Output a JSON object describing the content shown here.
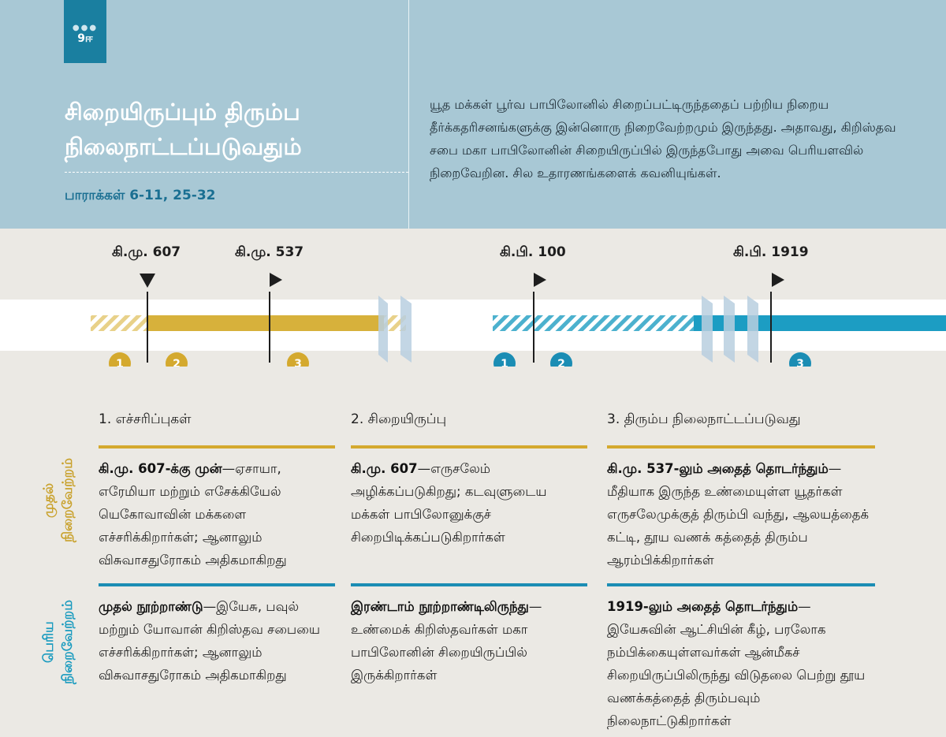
{
  "header": {
    "badge": "9ஈ",
    "title": [
      "சிறையிருப்பும் திரும்ப",
      "நிலைநாட்டப்படுவதும்"
    ],
    "paragraphs": "பாராக்கள் 6-11, 25-32",
    "intro": "யூத மக்கள் பூர்வ பாபிலோனில் சிறைப்பட்டிருந்ததைப் பற்றிய நிறைய தீர்க்கதரிசனங்களுக்கு இன்னொரு நிறைவேற்றமும் இருந்தது. அதாவது, கிறிஸ்தவ சபை மகா பாபிலோனின் சிறையிருப்பில் இருந்தபோது அவை பெரியளவில் நிறைவேறின. சில உதாரணங்களைக் கவனியுங்கள்."
  },
  "timeline": {
    "dates": [
      "கி.மு. 607",
      "கி.மு. 537",
      "கி.பி. 100",
      "கி.பி. 1919"
    ],
    "first_markers": [
      "1",
      "2",
      "3"
    ],
    "second_markers": [
      "1",
      "2",
      "3"
    ]
  },
  "table": {
    "columns": [
      "1. எச்சரிப்புகள்",
      "2. சிறையிருப்பு",
      "3. திரும்ப நிலைநாட்டப்படுவது"
    ],
    "rows": [
      {
        "label": "முதல் நிறைவேற்றம்",
        "cells": [
          {
            "lead": "கி.மு. 607-க்கு முன்",
            "text": "—ஏசாயா, எரேமியா மற்றும் எசேக்கியேல் யெகோவாவின் மக்களை எச்சரிக்கிறார்கள்; ஆனாலும் விசுவாசதுரோகம் அதிகமாகிறது"
          },
          {
            "lead": "கி.மு. 607",
            "text": "—எருசலேம் அழிக்கப்படுகிறது; கடவுளுடைய மக்கள் பாபிலோனுக்குச் சிறைபிடிக்கப்படுகிறார்கள்"
          },
          {
            "lead": "கி.மு. 537-லும் அதைத் தொடர்ந்தும்",
            "text": "—மீதியாக இருந்த உண்மையுள்ள யூதர்கள் எருசலேமுக்குத் திரும்பி வந்து, ஆலயத்தைக் கட்டி, தூய வணக் கத்தைத் திரும்ப ஆரம்பிக்கிறார்கள்"
          }
        ]
      },
      {
        "label": "பெரிய நிறைவேற்றம்",
        "cells": [
          {
            "lead": "முதல் நூற்றாண்டு",
            "text": "—இயேசு, பவுல் மற்றும் யோவான் கிறிஸ்தவ சபையை எச்சரிக்கிறார்கள்; ஆனாலும் விசுவாசதுரோகம் அதிகமாகிறது"
          },
          {
            "lead": "இரண்டாம் நூற்றாண்டிலிருந்து",
            "text": "—உண்மைக் கிறிஸ்தவர்கள் மகா பாபிலோனின் சிறையிருப்பில் இருக்கிறார்கள்"
          },
          {
            "lead": "1919-லும் அதைத் தொடர்ந்தும்",
            "text": "—இயேசுவின் ஆட்சியின் கீழ், பரலோக நம்பிக்கையுள்ளவர்கள் ஆன்மீகச் சிறையிருப்பிலிருந்து விடுதலை பெற்று தூய வணக்கத்தைத் திரும்பவும் நிலைநாட்டுகிறார்கள்"
          }
        ]
      }
    ]
  }
}
